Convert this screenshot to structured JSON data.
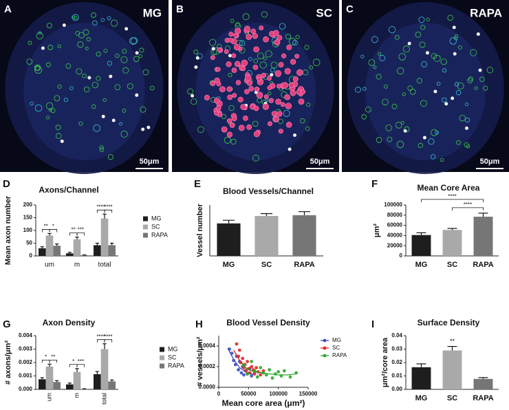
{
  "panels": [
    {
      "letter": "A",
      "label": "MG",
      "scale_bar": "50μm"
    },
    {
      "letter": "B",
      "label": "SC",
      "scale_bar": "50μm"
    },
    {
      "letter": "C",
      "label": "RAPA",
      "scale_bar": "50μm"
    }
  ],
  "chart_data": [
    {
      "type": "bar",
      "panel": "D",
      "title": "Axons/Channel",
      "ylabel": "Mean axon number",
      "categories": [
        "um",
        "m",
        "total"
      ],
      "series": [
        {
          "name": "MG",
          "color": "#1e1e1e",
          "values": [
            30,
            10,
            42
          ],
          "errors": [
            6,
            4,
            8
          ]
        },
        {
          "name": "SC",
          "color": "#a9a9a9",
          "values": [
            80,
            65,
            147
          ],
          "errors": [
            8,
            9,
            17
          ]
        },
        {
          "name": "RAPA",
          "color": "#767676",
          "values": [
            40,
            3,
            42
          ],
          "errors": [
            7,
            1,
            8
          ]
        }
      ],
      "ylim": [
        0,
        200
      ],
      "yticks": [
        0,
        50,
        100,
        150,
        200
      ],
      "annotations": [
        {
          "text": "**",
          "category": "um",
          "between": [
            "MG",
            "SC"
          ]
        },
        {
          "text": "*",
          "category": "um",
          "between": [
            "SC",
            "RAPA"
          ]
        },
        {
          "text": "**",
          "category": "m",
          "between": [
            "MG",
            "SC"
          ]
        },
        {
          "text": "***",
          "category": "m",
          "between": [
            "SC",
            "RAPA"
          ]
        },
        {
          "text": "****",
          "category": "total",
          "between": [
            "MG",
            "SC"
          ]
        },
        {
          "text": "****",
          "category": "total",
          "between": [
            "SC",
            "RAPA"
          ]
        }
      ]
    },
    {
      "type": "bar",
      "panel": "E",
      "title": "Blood Vessels/Channel",
      "ylabel": "Vessel number",
      "categories": [
        "MG",
        "SC",
        "RAPA"
      ],
      "values": [
        8.3,
        10.2,
        10.4
      ],
      "errors": [
        0.8,
        0.6,
        0.9
      ],
      "colors": [
        "#1e1e1e",
        "#a9a9a9",
        "#767676"
      ],
      "ylim": [
        0,
        13
      ]
    },
    {
      "type": "bar",
      "panel": "F",
      "title": "Mean Core Area",
      "ylabel": "μm²",
      "categories": [
        "MG",
        "SC",
        "RAPA"
      ],
      "values": [
        41000,
        51000,
        77000
      ],
      "errors": [
        4500,
        3000,
        7000
      ],
      "colors": [
        "#1e1e1e",
        "#a9a9a9",
        "#767676"
      ],
      "ylim": [
        0,
        100000
      ],
      "yticks": [
        0,
        20000,
        40000,
        60000,
        80000,
        100000
      ],
      "annotations": [
        {
          "text": "****",
          "between": [
            "MG",
            "RAPA"
          ]
        },
        {
          "text": "****",
          "between": [
            "SC",
            "RAPA"
          ]
        }
      ]
    },
    {
      "type": "bar",
      "panel": "G",
      "title": "Axon Density",
      "ylabel": "# axons/μm²",
      "categories": [
        "um",
        "m",
        "total"
      ],
      "series": [
        {
          "name": "MG",
          "color": "#1e1e1e",
          "values": [
            0.00075,
            0.00037,
            0.00113
          ],
          "errors": [
            0.00012,
            0.0001,
            0.0002
          ]
        },
        {
          "name": "SC",
          "color": "#a9a9a9",
          "values": [
            0.0017,
            0.0013,
            0.003
          ],
          "errors": [
            0.00018,
            0.00025,
            0.0004
          ]
        },
        {
          "name": "RAPA",
          "color": "#767676",
          "values": [
            0.00055,
            3e-05,
            0.0006
          ],
          "errors": [
            0.0001,
            2e-05,
            0.0001
          ]
        }
      ],
      "ylim": [
        0,
        0.004
      ],
      "yticks": [
        {
          "value": 0,
          "label": "0.000"
        },
        {
          "value": 0.001,
          "label": "0.001"
        },
        {
          "value": 0.002,
          "label": "0.002"
        },
        {
          "value": 0.003,
          "label": "0.003"
        },
        {
          "value": 0.004,
          "label": "0.004"
        }
      ],
      "annotations": [
        {
          "text": "*",
          "category": "um",
          "between": [
            "MG",
            "SC"
          ]
        },
        {
          "text": "**",
          "category": "um",
          "between": [
            "SC",
            "RAPA"
          ]
        },
        {
          "text": "*",
          "category": "m",
          "between": [
            "MG",
            "SC"
          ]
        },
        {
          "text": "***",
          "category": "m",
          "between": [
            "SC",
            "RAPA"
          ]
        },
        {
          "text": "****",
          "category": "total",
          "between": [
            "MG",
            "SC"
          ]
        },
        {
          "text": "****",
          "category": "total",
          "between": [
            "SC",
            "RAPA"
          ]
        }
      ]
    },
    {
      "type": "scatter",
      "panel": "H",
      "title": "Blood Vessel Density",
      "ylabel": "# vessels/μm²",
      "xlabel": "Mean core area (μm²)",
      "xlim": [
        0,
        150000
      ],
      "xticks": [
        0,
        50000,
        100000,
        150000
      ],
      "ylim": [
        0,
        0.0005
      ],
      "yticks": [
        {
          "value": 0,
          "label": "0.0000"
        },
        {
          "value": 0.0002,
          "label": "0.0002"
        },
        {
          "value": 0.0004,
          "label": "0.0004"
        }
      ],
      "series": [
        {
          "name": "MG",
          "color": "#3b4cc0",
          "x": [
            18000,
            22000,
            25000,
            28000,
            30000,
            33000,
            35000,
            38000,
            40000,
            42000,
            45000,
            48000,
            52000,
            55000,
            60000
          ],
          "values": [
            0.00037,
            0.00033,
            0.00026,
            0.00022,
            0.0003,
            0.00017,
            0.00025,
            0.00014,
            0.0002,
            0.00012,
            0.00016,
            0.00013,
            0.00018,
            0.00011,
            0.00015
          ],
          "fit": {
            "x": [
              15000,
              25000,
              35000,
              45000,
              55000,
              62000
            ],
            "y": [
              0.00038,
              0.00027,
              0.00019,
              0.00015,
              0.00013,
              0.00012
            ]
          }
        },
        {
          "name": "SC",
          "color": "#e8231f",
          "x": [
            30000,
            33000,
            35000,
            37000,
            40000,
            42000,
            44000,
            46000,
            48000,
            50000,
            52000,
            55000,
            58000,
            60000,
            63000,
            66000,
            70000,
            75000
          ],
          "values": [
            0.00042,
            0.0003,
            0.00036,
            0.00024,
            0.00028,
            0.00019,
            0.00022,
            0.00016,
            0.00025,
            0.00018,
            0.00014,
            0.0002,
            0.00017,
            0.00013,
            0.00019,
            0.00015,
            0.00012,
            0.00016
          ],
          "fit": {
            "x": [
              25000,
              35000,
              45000,
              55000,
              65000,
              75000
            ],
            "y": [
              0.00036,
              0.00026,
              0.00019,
              0.00016,
              0.00015,
              0.00014
            ]
          }
        },
        {
          "name": "RAPA",
          "color": "#2ca82c",
          "x": [
            42000,
            48000,
            55000,
            60000,
            65000,
            70000,
            75000,
            80000,
            85000,
            90000,
            95000,
            100000,
            105000,
            110000,
            120000,
            130000
          ],
          "values": [
            0.00022,
            0.00013,
            0.00025,
            0.00016,
            0.0001,
            0.00019,
            0.00014,
            0.00012,
            0.00017,
            9e-05,
            0.00013,
            0.00015,
            0.00011,
            0.00016,
            0.0001,
            0.00014
          ],
          "fit": {
            "x": [
              40000,
              55000,
              70000,
              85000,
              100000,
              115000,
              130000
            ],
            "y": [
              0.0002,
              0.00016,
              0.00014,
              0.00013,
              0.00012,
              0.00012,
              0.00013
            ]
          }
        }
      ]
    },
    {
      "type": "bar",
      "panel": "I",
      "title": "Surface Density",
      "ylabel": "μm²/core area",
      "categories": [
        "MG",
        "SC",
        "RAPA"
      ],
      "values": [
        0.0165,
        0.029,
        0.0078
      ],
      "errors": [
        0.0025,
        0.003,
        0.001
      ],
      "colors": [
        "#1e1e1e",
        "#a9a9a9",
        "#767676"
      ],
      "ylim": [
        0,
        0.04
      ],
      "yticks": [
        {
          "value": 0,
          "label": "0.00"
        },
        {
          "value": 0.01,
          "label": "0.01"
        },
        {
          "value": 0.02,
          "label": "0.02"
        },
        {
          "value": 0.03,
          "label": "0.03"
        },
        {
          "value": 0.04,
          "label": "0.04"
        }
      ],
      "annotations": [
        {
          "text": "**",
          "above": "SC"
        }
      ]
    }
  ]
}
